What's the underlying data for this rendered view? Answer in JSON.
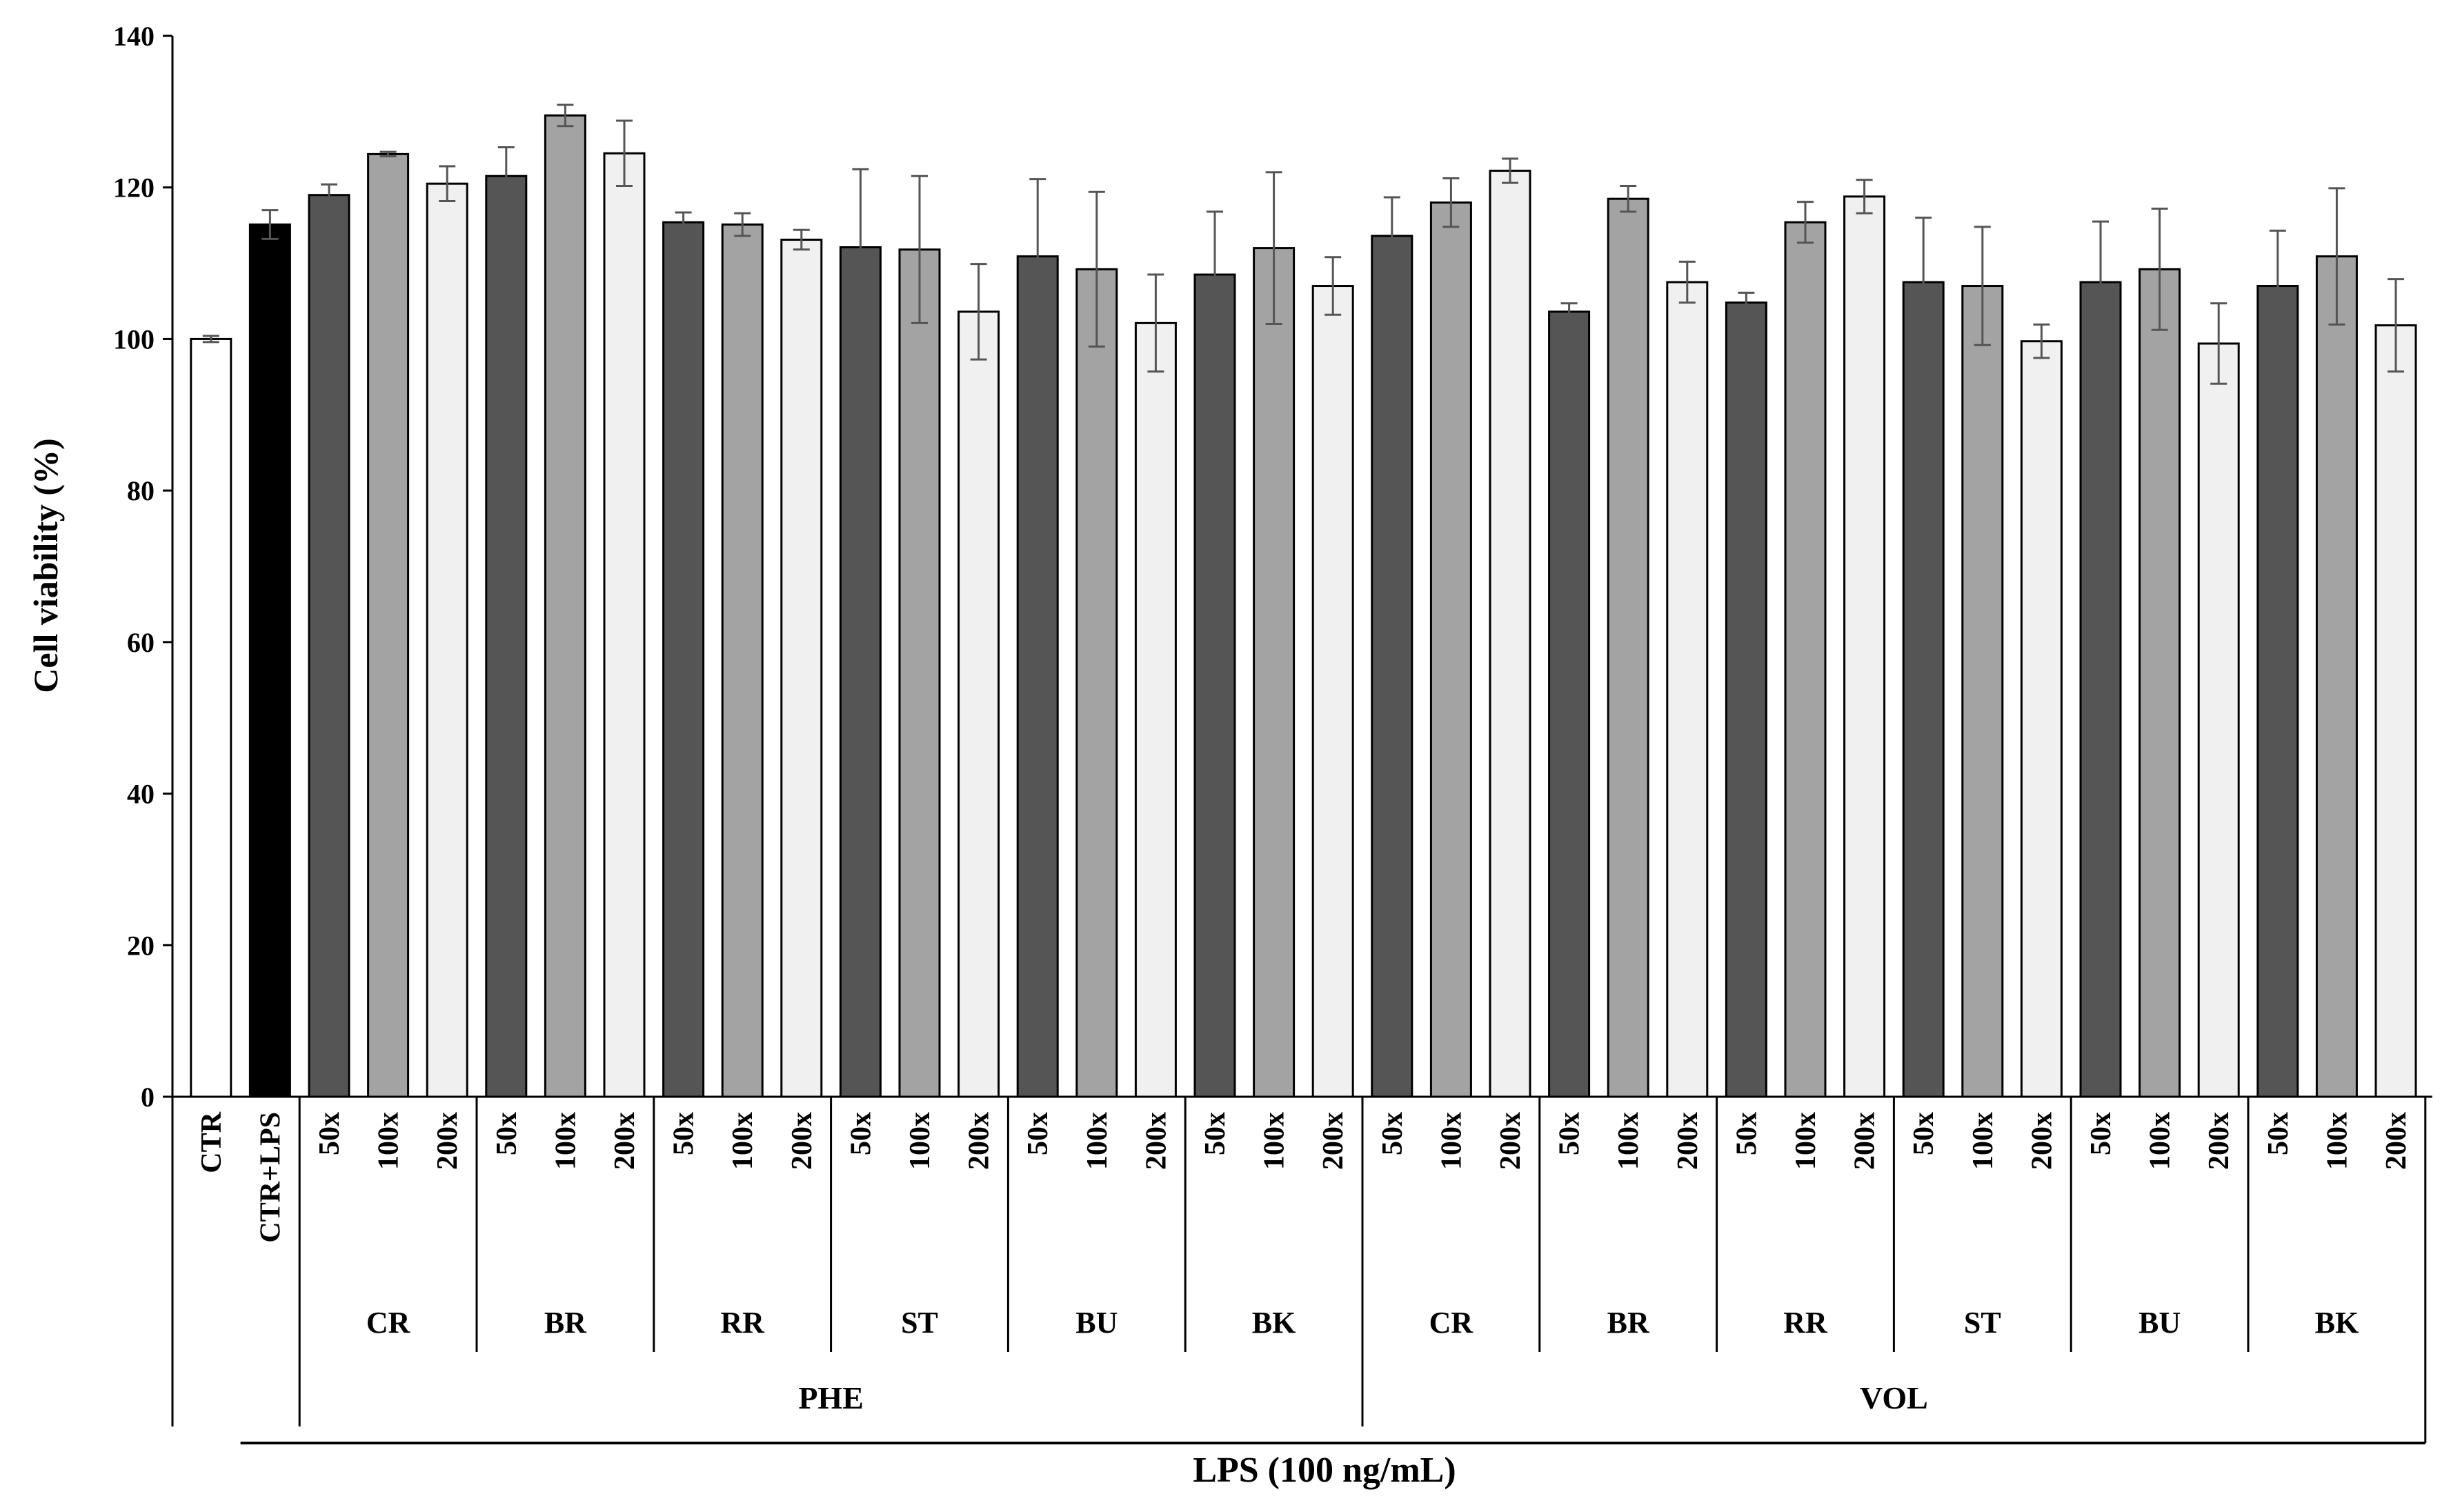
{
  "chart_data": {
    "type": "bar",
    "ylabel": "Cell viability (%)",
    "xlabel": "",
    "ylim": [
      0,
      140
    ],
    "yticks": [
      0,
      20,
      40,
      60,
      80,
      100,
      120,
      140
    ],
    "grid": false,
    "colors": {
      "CTR": "#ffffff",
      "CTR+LPS": "#000000",
      "50x": "#555555",
      "100x": "#a3a3a3",
      "200x": "#f0f0f0",
      "edge": "#000000",
      "error": "#555555"
    },
    "controls": [
      {
        "label": "CTR",
        "value": 100.0,
        "error": 0.4,
        "color": "CTR"
      },
      {
        "label": "CTR+LPS",
        "value": 115.1,
        "error": 1.9,
        "color": "CTR+LPS"
      }
    ],
    "dilutions": [
      "50x",
      "100x",
      "200x"
    ],
    "supergroups": [
      {
        "name": "PHE",
        "groups": [
          {
            "name": "CR",
            "values": [
              119.0,
              124.4,
              120.5
            ],
            "errors": [
              1.4,
              0.3,
              2.3
            ]
          },
          {
            "name": "BR",
            "values": [
              121.5,
              129.5,
              124.5
            ],
            "errors": [
              3.8,
              1.4,
              4.3
            ]
          },
          {
            "name": "RR",
            "values": [
              115.4,
              115.1,
              113.1
            ],
            "errors": [
              1.3,
              1.5,
              1.3
            ]
          },
          {
            "name": "ST",
            "values": [
              112.1,
              111.8,
              103.6
            ],
            "errors": [
              10.3,
              9.7,
              6.3
            ]
          },
          {
            "name": "BU",
            "values": [
              110.9,
              109.2,
              102.1
            ],
            "errors": [
              10.2,
              10.2,
              6.4
            ]
          },
          {
            "name": "BK",
            "values": [
              108.5,
              112.0,
              107.0
            ],
            "errors": [
              8.3,
              10.0,
              3.8
            ]
          }
        ]
      },
      {
        "name": "VOL",
        "groups": [
          {
            "name": "CR",
            "values": [
              113.6,
              118.0,
              122.2
            ],
            "errors": [
              5.1,
              3.2,
              1.6
            ]
          },
          {
            "name": "BR",
            "values": [
              103.6,
              118.5,
              107.5
            ],
            "errors": [
              1.1,
              1.7,
              2.7
            ]
          },
          {
            "name": "RR",
            "values": [
              104.8,
              115.4,
              118.8
            ],
            "errors": [
              1.3,
              2.7,
              2.2
            ]
          },
          {
            "name": "ST",
            "values": [
              107.5,
              107.0,
              99.7
            ],
            "errors": [
              8.5,
              7.8,
              2.2
            ]
          },
          {
            "name": "BU",
            "values": [
              107.5,
              109.2,
              99.4
            ],
            "errors": [
              8.0,
              8.0,
              5.3
            ]
          },
          {
            "name": "BK",
            "values": [
              107.0,
              110.9,
              101.8
            ],
            "errors": [
              7.3,
              9.0,
              6.1
            ]
          }
        ]
      }
    ],
    "bottom_label": "LPS (100 ng/mL)"
  }
}
